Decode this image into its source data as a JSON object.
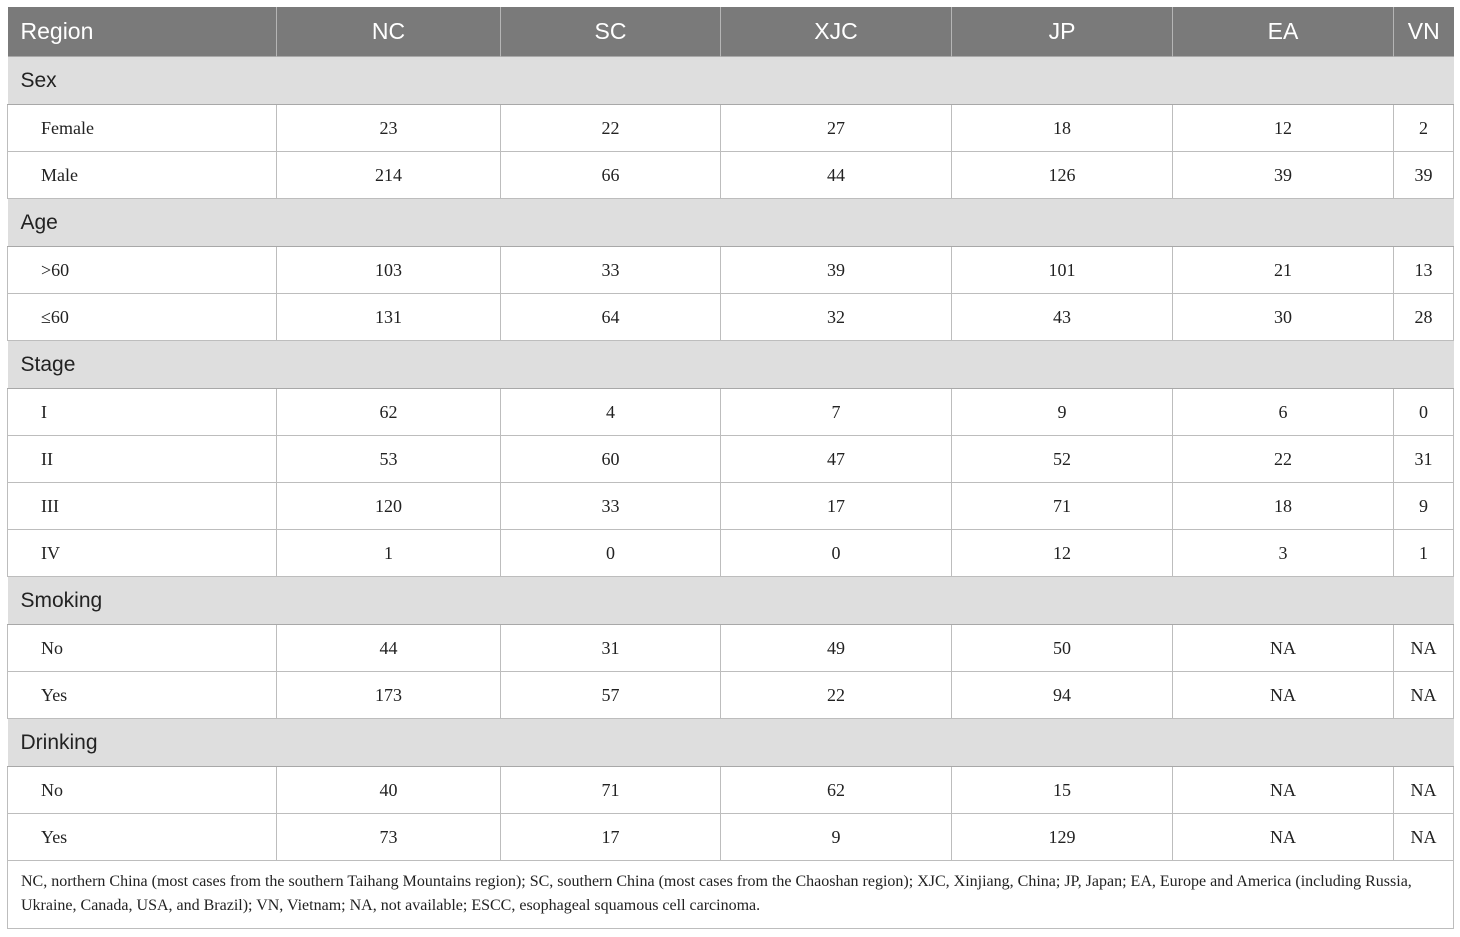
{
  "table": {
    "headers": [
      "Region",
      "NC",
      "SC",
      "XJC",
      "JP",
      "EA",
      "VN"
    ],
    "sections": [
      {
        "category": "Sex",
        "rows": [
          {
            "label": "Female",
            "values": [
              "23",
              "22",
              "27",
              "18",
              "12",
              "2"
            ]
          },
          {
            "label": "Male",
            "values": [
              "214",
              "66",
              "44",
              "126",
              "39",
              "39"
            ]
          }
        ]
      },
      {
        "category": "Age",
        "rows": [
          {
            "label": ">60",
            "values": [
              "103",
              "33",
              "39",
              "101",
              "21",
              "13"
            ]
          },
          {
            "label": "≤60",
            "values": [
              "131",
              "64",
              "32",
              "43",
              "30",
              "28"
            ]
          }
        ]
      },
      {
        "category": "Stage",
        "rows": [
          {
            "label": "I",
            "values": [
              "62",
              "4",
              "7",
              "9",
              "6",
              "0"
            ]
          },
          {
            "label": "II",
            "values": [
              "53",
              "60",
              "47",
              "52",
              "22",
              "31"
            ]
          },
          {
            "label": "III",
            "values": [
              "120",
              "33",
              "17",
              "71",
              "18",
              "9"
            ]
          },
          {
            "label": "IV",
            "values": [
              "1",
              "0",
              "0",
              "12",
              "3",
              "1"
            ]
          }
        ]
      },
      {
        "category": "Smoking",
        "rows": [
          {
            "label": "No",
            "values": [
              "44",
              "31",
              "49",
              "50",
              "NA",
              "NA"
            ]
          },
          {
            "label": "Yes",
            "values": [
              "173",
              "57",
              "22",
              "94",
              "NA",
              "NA"
            ]
          }
        ]
      },
      {
        "category": "Drinking",
        "rows": [
          {
            "label": "No",
            "values": [
              "40",
              "71",
              "62",
              "15",
              "NA",
              "NA"
            ]
          },
          {
            "label": "Yes",
            "values": [
              "73",
              "17",
              "9",
              "129",
              "NA",
              "NA"
            ]
          }
        ]
      }
    ],
    "footnote": "NC, northern China (most cases from the southern Taihang Mountains region); SC, southern China (most cases from the Chaoshan region); XJC, Xinjiang, China; JP, Japan; EA, Europe and America (including Russia, Ukraine, Canada, USA, and Brazil); VN, Vietnam; NA, not available; ESCC, esophageal squamous cell carcinoma."
  },
  "colors": {
    "header_bg": "#7a7a7a",
    "header_text": "#ffffff",
    "category_bg": "#dedede",
    "grid_line": "#bdbdbd"
  }
}
